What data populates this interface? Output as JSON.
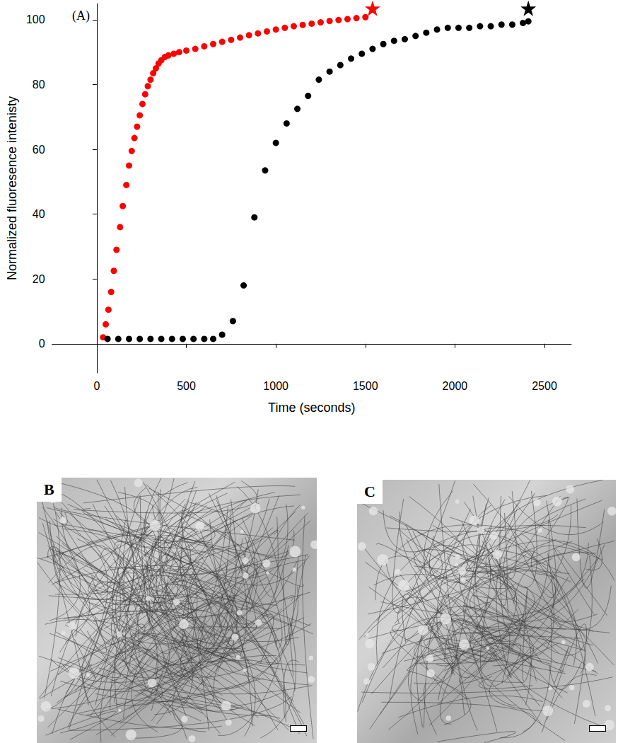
{
  "chart_data": {
    "type": "scatter",
    "title": "(A)",
    "x_label": "Time (seconds)",
    "y_label": "Normalized fluoresence intenisty",
    "xlim": [
      -250,
      2650
    ],
    "xticks": [
      0,
      500,
      1000,
      1500,
      2000,
      2500
    ],
    "ylim": [
      -9,
      105
    ],
    "yticks": [
      0,
      20,
      40,
      60,
      80,
      100
    ],
    "grid": false,
    "series": [
      {
        "color": "#ff0000",
        "marker": "circle",
        "values": [
          [
            35,
            2
          ],
          [
            50,
            6
          ],
          [
            65,
            10.5
          ],
          [
            80,
            16
          ],
          [
            95,
            22.5
          ],
          [
            110,
            29
          ],
          [
            130,
            36
          ],
          [
            145,
            42.5
          ],
          [
            165,
            49
          ],
          [
            180,
            55
          ],
          [
            195,
            59.5
          ],
          [
            210,
            63.5
          ],
          [
            225,
            67
          ],
          [
            240,
            70.5
          ],
          [
            255,
            74
          ],
          [
            270,
            77
          ],
          [
            285,
            79.5
          ],
          [
            300,
            81.5
          ],
          [
            315,
            83.5
          ],
          [
            330,
            85
          ],
          [
            345,
            86.5
          ],
          [
            360,
            87.5
          ],
          [
            380,
            88.5
          ],
          [
            400,
            89
          ],
          [
            430,
            89.5
          ],
          [
            460,
            90
          ],
          [
            500,
            90.5
          ],
          [
            550,
            91
          ],
          [
            600,
            91.8
          ],
          [
            650,
            92.5
          ],
          [
            700,
            93.2
          ],
          [
            750,
            93.8
          ],
          [
            800,
            94.5
          ],
          [
            850,
            95.2
          ],
          [
            900,
            95.8
          ],
          [
            950,
            96.4
          ],
          [
            1000,
            97
          ],
          [
            1050,
            97.5
          ],
          [
            1100,
            98
          ],
          [
            1150,
            98.4
          ],
          [
            1200,
            98.8
          ],
          [
            1250,
            99.2
          ],
          [
            1300,
            99.6
          ],
          [
            1350,
            99.9
          ],
          [
            1400,
            100.2
          ],
          [
            1450,
            100.5
          ],
          [
            1500,
            100.8
          ]
        ]
      },
      {
        "color": "#000000",
        "marker": "circle",
        "values": [
          [
            60,
            1.5
          ],
          [
            120,
            1.5
          ],
          [
            180,
            1.5
          ],
          [
            240,
            1.5
          ],
          [
            300,
            1.5
          ],
          [
            360,
            1.5
          ],
          [
            420,
            1.5
          ],
          [
            480,
            1.5
          ],
          [
            540,
            1.5
          ],
          [
            600,
            1.5
          ],
          [
            650,
            1.5
          ],
          [
            700,
            2.8
          ],
          [
            760,
            7
          ],
          [
            820,
            18
          ],
          [
            880,
            39
          ],
          [
            940,
            53.5
          ],
          [
            1000,
            62
          ],
          [
            1060,
            68
          ],
          [
            1120,
            72.5
          ],
          [
            1180,
            76.5
          ],
          [
            1240,
            81.5
          ],
          [
            1300,
            84
          ],
          [
            1360,
            86
          ],
          [
            1420,
            88
          ],
          [
            1480,
            89.5
          ],
          [
            1540,
            91
          ],
          [
            1600,
            92.5
          ],
          [
            1660,
            93.5
          ],
          [
            1720,
            94
          ],
          [
            1780,
            95
          ],
          [
            1840,
            96
          ],
          [
            1900,
            97
          ],
          [
            1960,
            97.5
          ],
          [
            2020,
            97.5
          ],
          [
            2080,
            97.5
          ],
          [
            2140,
            98
          ],
          [
            2200,
            98
          ],
          [
            2260,
            98.5
          ],
          [
            2320,
            98.5
          ],
          [
            2380,
            99
          ],
          [
            2410,
            99.5
          ]
        ]
      },
      {
        "color": "#ff0000",
        "marker": "star",
        "values": [
          [
            1540,
            103.5
          ]
        ]
      },
      {
        "color": "#000000",
        "marker": "star",
        "values": [
          [
            2410,
            103.5
          ]
        ]
      }
    ]
  },
  "panels": [
    {
      "label": "B"
    },
    {
      "label": "C"
    }
  ]
}
